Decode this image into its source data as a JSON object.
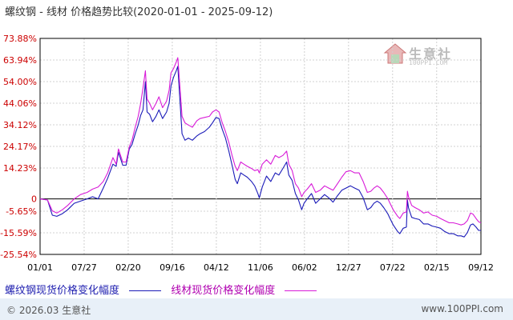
{
  "header": {
    "title": "螺纹钢 - 线材 价格趋势比较(2020-01-01 - 2025-09-12)"
  },
  "watermark": {
    "brand": "生意社",
    "url": "100PPI.COM"
  },
  "footer": {
    "copyright": "© 2026.03 生意社",
    "site": "www.100PPI.com"
  },
  "colors": {
    "series1": "#1a1ab8",
    "series2": "#d81bd8",
    "grid": "#d0d0d0",
    "axis": "#000000"
  },
  "chart_data": {
    "type": "line",
    "title": "螺纹钢 - 线材 价格趋势比较(2020-01-01 - 2025-09-12)",
    "xlabel": "",
    "ylabel": "",
    "x_start": "2020-01-01",
    "x_end": "2025-09-12",
    "xticks": [
      {
        "date": "2020-01-01",
        "label": "01/01"
      },
      {
        "date": "2020-07-27",
        "label": "07/27"
      },
      {
        "date": "2021-02-20",
        "label": "02/20"
      },
      {
        "date": "2021-09-16",
        "label": "09/16"
      },
      {
        "date": "2022-04-12",
        "label": "04/12"
      },
      {
        "date": "2022-11-06",
        "label": "11/06"
      },
      {
        "date": "2023-06-02",
        "label": "06/02"
      },
      {
        "date": "2023-12-27",
        "label": "12/27"
      },
      {
        "date": "2024-07-22",
        "label": "07/22"
      },
      {
        "date": "2025-02-15",
        "label": "02/15"
      },
      {
        "date": "2025-09-12",
        "label": "09/12"
      }
    ],
    "yticks": [
      {
        "value": 73.88,
        "label": "73.88%"
      },
      {
        "value": 63.94,
        "label": "63.94%"
      },
      {
        "value": 54.0,
        "label": "54.00%"
      },
      {
        "value": 44.06,
        "label": "44.06%"
      },
      {
        "value": 34.12,
        "label": "34.12%"
      },
      {
        "value": 24.17,
        "label": "24.17%"
      },
      {
        "value": 14.23,
        "label": "14.23%"
      },
      {
        "value": 0,
        "label": "0"
      },
      {
        "value": -5.65,
        "label": "-5.65%"
      },
      {
        "value": -15.59,
        "label": "-15.59%"
      },
      {
        "value": -25.54,
        "label": "-25.54%"
      }
    ],
    "ylim": [
      -25.54,
      73.88
    ],
    "grid": true,
    "legend_position": "bottom-left",
    "series": [
      {
        "name": "螺纹钢现货价格变化幅度",
        "color": "#1a1ab8",
        "points": [
          [
            "2020-01-01",
            0.0
          ],
          [
            "2020-02-05",
            -0.5
          ],
          [
            "2020-02-28",
            -7.5
          ],
          [
            "2020-03-20",
            -8.0
          ],
          [
            "2020-04-15",
            -6.8
          ],
          [
            "2020-05-10",
            -5.0
          ],
          [
            "2020-06-10",
            -2.0
          ],
          [
            "2020-07-10",
            -1.0
          ],
          [
            "2020-08-10",
            0.0
          ],
          [
            "2020-09-05",
            1.0
          ],
          [
            "2020-10-01",
            0.0
          ],
          [
            "2020-10-25",
            5.0
          ],
          [
            "2020-11-15",
            9.5
          ],
          [
            "2020-12-10",
            16.0
          ],
          [
            "2020-12-25",
            15.0
          ],
          [
            "2021-01-05",
            21.5
          ],
          [
            "2021-01-25",
            15.5
          ],
          [
            "2021-02-10",
            15.5
          ],
          [
            "2021-02-25",
            23.0
          ],
          [
            "2021-03-10",
            25.0
          ],
          [
            "2021-03-25",
            30.0
          ],
          [
            "2021-04-08",
            34.0
          ],
          [
            "2021-04-20",
            38.5
          ],
          [
            "2021-05-01",
            41.0
          ],
          [
            "2021-05-12",
            54.0
          ],
          [
            "2021-05-20",
            40.0
          ],
          [
            "2021-06-01",
            39.0
          ],
          [
            "2021-06-15",
            35.5
          ],
          [
            "2021-07-01",
            38.0
          ],
          [
            "2021-07-15",
            41.0
          ],
          [
            "2021-08-01",
            37.0
          ],
          [
            "2021-08-20",
            40.0
          ],
          [
            "2021-09-01",
            44.0
          ],
          [
            "2021-09-10",
            52.0
          ],
          [
            "2021-09-22",
            56.0
          ],
          [
            "2021-10-05",
            59.0
          ],
          [
            "2021-10-12",
            61.0
          ],
          [
            "2021-10-22",
            46.0
          ],
          [
            "2021-11-01",
            30.0
          ],
          [
            "2021-11-15",
            27.0
          ],
          [
            "2021-12-01",
            28.0
          ],
          [
            "2021-12-20",
            27.0
          ],
          [
            "2022-01-10",
            29.0
          ],
          [
            "2022-01-25",
            30.0
          ],
          [
            "2022-02-15",
            31.0
          ],
          [
            "2022-03-10",
            33.0
          ],
          [
            "2022-03-25",
            35.0
          ],
          [
            "2022-04-10",
            37.5
          ],
          [
            "2022-04-25",
            37.0
          ],
          [
            "2022-05-10",
            32.0
          ],
          [
            "2022-05-25",
            28.0
          ],
          [
            "2022-06-10",
            22.0
          ],
          [
            "2022-06-25",
            15.5
          ],
          [
            "2022-07-10",
            9.0
          ],
          [
            "2022-07-20",
            7.0
          ],
          [
            "2022-08-05",
            12.0
          ],
          [
            "2022-08-20",
            11.0
          ],
          [
            "2022-09-05",
            10.0
          ],
          [
            "2022-09-25",
            8.0
          ],
          [
            "2022-10-10",
            6.0
          ],
          [
            "2022-10-25",
            2.5
          ],
          [
            "2022-11-01",
            0.5
          ],
          [
            "2022-11-15",
            5.5
          ],
          [
            "2022-12-05",
            10.5
          ],
          [
            "2022-12-25",
            8.0
          ],
          [
            "2023-01-15",
            12.0
          ],
          [
            "2023-02-01",
            11.0
          ],
          [
            "2023-02-20",
            14.0
          ],
          [
            "2023-03-10",
            17.0
          ],
          [
            "2023-03-20",
            11.0
          ],
          [
            "2023-04-05",
            8.5
          ],
          [
            "2023-04-20",
            2.5
          ],
          [
            "2023-05-05",
            -0.5
          ],
          [
            "2023-05-20",
            -5.0
          ],
          [
            "2023-05-31",
            -2.0
          ],
          [
            "2023-06-15",
            0.0
          ],
          [
            "2023-07-05",
            2.5
          ],
          [
            "2023-07-25",
            -2.0
          ],
          [
            "2023-08-15",
            0.0
          ],
          [
            "2023-09-05",
            2.0
          ],
          [
            "2023-09-25",
            0.5
          ],
          [
            "2023-10-15",
            -1.5
          ],
          [
            "2023-11-05",
            1.5
          ],
          [
            "2023-11-25",
            4.0
          ],
          [
            "2023-12-15",
            5.0
          ],
          [
            "2024-01-05",
            6.0
          ],
          [
            "2024-01-25",
            5.0
          ],
          [
            "2024-02-15",
            4.0
          ],
          [
            "2024-03-05",
            0.5
          ],
          [
            "2024-03-25",
            -5.0
          ],
          [
            "2024-04-10",
            -4.0
          ],
          [
            "2024-04-25",
            -2.0
          ],
          [
            "2024-05-10",
            -1.0
          ],
          [
            "2024-05-25",
            -2.0
          ],
          [
            "2024-06-10",
            -4.0
          ],
          [
            "2024-06-30",
            -7.0
          ],
          [
            "2024-07-10",
            -9.0
          ],
          [
            "2024-07-25",
            -12.0
          ],
          [
            "2024-08-15",
            -15.0
          ],
          [
            "2024-08-25",
            -16.0
          ],
          [
            "2024-09-10",
            -13.5
          ],
          [
            "2024-09-25",
            -13.0
          ],
          [
            "2024-09-30",
            -0.5
          ],
          [
            "2024-10-05",
            -4.0
          ],
          [
            "2024-10-20",
            -8.5
          ],
          [
            "2024-11-05",
            -9.0
          ],
          [
            "2024-11-25",
            -9.5
          ],
          [
            "2024-12-15",
            -11.5
          ],
          [
            "2025-01-05",
            -11.5
          ],
          [
            "2025-01-25",
            -12.5
          ],
          [
            "2025-02-15",
            -13.0
          ],
          [
            "2025-03-05",
            -13.5
          ],
          [
            "2025-03-25",
            -15.0
          ],
          [
            "2025-04-15",
            -16.0
          ],
          [
            "2025-05-05",
            -16.0
          ],
          [
            "2025-05-25",
            -17.0
          ],
          [
            "2025-06-10",
            -17.0
          ],
          [
            "2025-06-25",
            -17.5
          ],
          [
            "2025-07-10",
            -15.5
          ],
          [
            "2025-07-25",
            -12.0
          ],
          [
            "2025-08-05",
            -11.5
          ],
          [
            "2025-08-20",
            -13.0
          ],
          [
            "2025-09-01",
            -14.5
          ],
          [
            "2025-09-12",
            -14.5
          ]
        ]
      },
      {
        "name": "线材现货价格变化幅度",
        "color": "#d81bd8",
        "points": [
          [
            "2020-01-01",
            0.0
          ],
          [
            "2020-02-05",
            -0.5
          ],
          [
            "2020-02-28",
            -5.5
          ],
          [
            "2020-03-20",
            -6.5
          ],
          [
            "2020-04-15",
            -5.0
          ],
          [
            "2020-05-10",
            -3.0
          ],
          [
            "2020-06-10",
            0.0
          ],
          [
            "2020-07-10",
            2.0
          ],
          [
            "2020-08-10",
            3.0
          ],
          [
            "2020-09-05",
            4.5
          ],
          [
            "2020-10-01",
            5.5
          ],
          [
            "2020-10-25",
            8.0
          ],
          [
            "2020-11-15",
            12.0
          ],
          [
            "2020-12-10",
            19.0
          ],
          [
            "2020-12-25",
            16.0
          ],
          [
            "2021-01-05",
            23.0
          ],
          [
            "2021-01-25",
            17.0
          ],
          [
            "2021-02-10",
            17.0
          ],
          [
            "2021-02-25",
            24.0
          ],
          [
            "2021-03-10",
            27.0
          ],
          [
            "2021-03-25",
            33.0
          ],
          [
            "2021-04-08",
            38.0
          ],
          [
            "2021-04-20",
            44.0
          ],
          [
            "2021-05-01",
            51.0
          ],
          [
            "2021-05-12",
            59.0
          ],
          [
            "2021-05-20",
            46.0
          ],
          [
            "2021-06-01",
            44.0
          ],
          [
            "2021-06-15",
            41.0
          ],
          [
            "2021-07-01",
            44.0
          ],
          [
            "2021-07-15",
            47.0
          ],
          [
            "2021-08-01",
            42.0
          ],
          [
            "2021-08-20",
            45.0
          ],
          [
            "2021-09-01",
            50.0
          ],
          [
            "2021-09-10",
            58.0
          ],
          [
            "2021-09-22",
            60.0
          ],
          [
            "2021-10-05",
            63.0
          ],
          [
            "2021-10-12",
            65.0
          ],
          [
            "2021-10-22",
            52.0
          ],
          [
            "2021-11-01",
            38.0
          ],
          [
            "2021-11-15",
            35.0
          ],
          [
            "2021-12-01",
            34.0
          ],
          [
            "2021-12-20",
            33.0
          ],
          [
            "2022-01-10",
            36.0
          ],
          [
            "2022-01-25",
            37.0
          ],
          [
            "2022-02-15",
            37.5
          ],
          [
            "2022-03-10",
            38.0
          ],
          [
            "2022-03-25",
            40.0
          ],
          [
            "2022-04-10",
            41.0
          ],
          [
            "2022-04-25",
            40.0
          ],
          [
            "2022-05-10",
            35.0
          ],
          [
            "2022-05-25",
            31.0
          ],
          [
            "2022-06-10",
            26.0
          ],
          [
            "2022-06-25",
            20.0
          ],
          [
            "2022-07-10",
            15.0
          ],
          [
            "2022-07-20",
            13.0
          ],
          [
            "2022-08-05",
            17.0
          ],
          [
            "2022-08-20",
            16.0
          ],
          [
            "2022-09-05",
            15.0
          ],
          [
            "2022-09-25",
            14.0
          ],
          [
            "2022-10-10",
            13.0
          ],
          [
            "2022-10-25",
            13.5
          ],
          [
            "2022-11-01",
            12.0
          ],
          [
            "2022-11-15",
            16.0
          ],
          [
            "2022-12-05",
            18.0
          ],
          [
            "2022-12-25",
            16.0
          ],
          [
            "2023-01-15",
            20.0
          ],
          [
            "2023-02-01",
            19.0
          ],
          [
            "2023-02-20",
            20.0
          ],
          [
            "2023-03-10",
            22.0
          ],
          [
            "2023-03-20",
            16.0
          ],
          [
            "2023-04-05",
            13.0
          ],
          [
            "2023-04-20",
            7.0
          ],
          [
            "2023-05-05",
            5.0
          ],
          [
            "2023-05-20",
            1.0
          ],
          [
            "2023-05-31",
            3.0
          ],
          [
            "2023-06-15",
            4.5
          ],
          [
            "2023-07-05",
            7.0
          ],
          [
            "2023-07-25",
            3.0
          ],
          [
            "2023-08-15",
            4.0
          ],
          [
            "2023-09-05",
            6.0
          ],
          [
            "2023-09-25",
            5.0
          ],
          [
            "2023-10-15",
            4.0
          ],
          [
            "2023-11-05",
            7.0
          ],
          [
            "2023-11-25",
            10.0
          ],
          [
            "2023-12-15",
            12.5
          ],
          [
            "2024-01-05",
            13.0
          ],
          [
            "2024-01-25",
            12.0
          ],
          [
            "2024-02-15",
            12.0
          ],
          [
            "2024-03-05",
            8.0
          ],
          [
            "2024-03-25",
            3.0
          ],
          [
            "2024-04-10",
            3.5
          ],
          [
            "2024-04-25",
            5.0
          ],
          [
            "2024-05-10",
            6.0
          ],
          [
            "2024-05-25",
            5.0
          ],
          [
            "2024-06-10",
            3.0
          ],
          [
            "2024-06-30",
            0.0
          ],
          [
            "2024-07-10",
            -2.0
          ],
          [
            "2024-07-25",
            -5.0
          ],
          [
            "2024-08-15",
            -8.0
          ],
          [
            "2024-08-25",
            -9.0
          ],
          [
            "2024-09-10",
            -6.5
          ],
          [
            "2024-09-25",
            -6.0
          ],
          [
            "2024-09-30",
            3.5
          ],
          [
            "2024-10-05",
            1.0
          ],
          [
            "2024-10-20",
            -3.0
          ],
          [
            "2024-11-05",
            -4.0
          ],
          [
            "2024-11-25",
            -5.0
          ],
          [
            "2024-12-15",
            -6.5
          ],
          [
            "2025-01-05",
            -6.0
          ],
          [
            "2025-01-25",
            -7.5
          ],
          [
            "2025-02-15",
            -8.0
          ],
          [
            "2025-03-05",
            -9.0
          ],
          [
            "2025-03-25",
            -10.0
          ],
          [
            "2025-04-15",
            -11.0
          ],
          [
            "2025-05-05",
            -11.0
          ],
          [
            "2025-05-25",
            -11.5
          ],
          [
            "2025-06-10",
            -12.0
          ],
          [
            "2025-06-25",
            -11.5
          ],
          [
            "2025-07-10",
            -10.0
          ],
          [
            "2025-07-25",
            -6.5
          ],
          [
            "2025-08-05",
            -7.0
          ],
          [
            "2025-08-20",
            -9.0
          ],
          [
            "2025-09-01",
            -10.5
          ],
          [
            "2025-09-12",
            -11.0
          ]
        ]
      }
    ]
  }
}
